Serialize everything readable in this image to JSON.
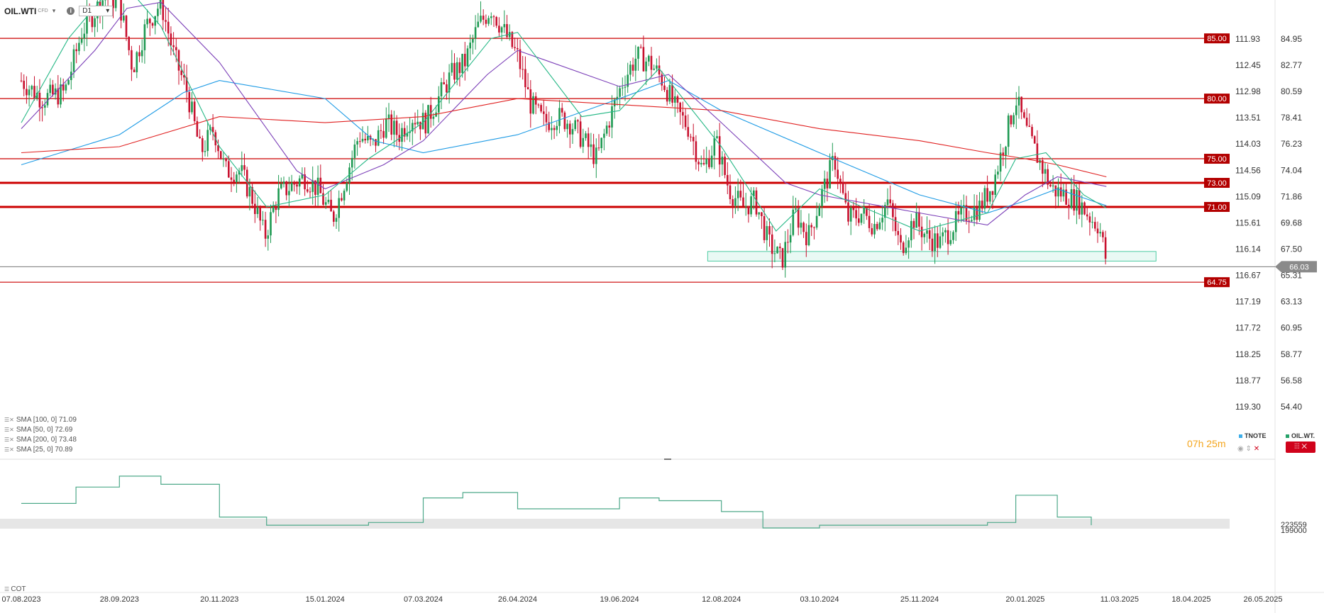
{
  "header": {
    "symbol": "OIL.WTI",
    "symbol_type": "CFD",
    "timeframe": "D1",
    "caret": "▾",
    "info_icon": "info-icon"
  },
  "chart_data": {
    "type": "line",
    "title": "",
    "series_style": "candlestick",
    "xlabel": "",
    "ylabel": "",
    "x_ticks": [
      "07.08.2023",
      "28.09.2023",
      "20.11.2023",
      "15.01.2024",
      "07.03.2024",
      "26.04.2024",
      "19.06.2024",
      "12.08.2024",
      "03.10.2024",
      "25.11.2024",
      "20.01.2025",
      "11.03.2025",
      "18.04.2025",
      "26.05.2025"
    ],
    "y_ticks": [
      "84.95",
      "82.77",
      "80.59",
      "78.41",
      "76.23",
      "74.04",
      "71.86",
      "69.68",
      "67.50",
      "65.31",
      "63.13",
      "60.95",
      "58.77",
      "56.58",
      "54.40"
    ],
    "y_ticks_secondary": [
      "111.93",
      "112.45",
      "112.98",
      "113.51",
      "114.03",
      "114.56",
      "115.09",
      "115.61",
      "116.14",
      "116.67",
      "117.19",
      "117.72",
      "118.25",
      "118.77",
      "119.30"
    ],
    "ylim": [
      54.4,
      84.95
    ],
    "current_price": "66.03",
    "levels": [
      {
        "label": "85.00",
        "value": 85.0
      },
      {
        "label": "80.00",
        "value": 80.0
      },
      {
        "label": "75.00",
        "value": 75.0
      },
      {
        "label": "73.00",
        "value": 73.0
      },
      {
        "label": "71.00",
        "value": 71.0
      },
      {
        "label": "64.75",
        "value": 64.75
      }
    ],
    "support_zone": [
      66.5,
      67.3
    ],
    "close_path": [
      {
        "date": "07.08.2023",
        "value": 81.5
      },
      {
        "date": "18.08.2023",
        "value": 80.0
      },
      {
        "date": "30.08.2023",
        "value": 80.5
      },
      {
        "date": "08.09.2023",
        "value": 85.5
      },
      {
        "date": "20.09.2023",
        "value": 88.5
      },
      {
        "date": "28.09.2023",
        "value": 88.0
      },
      {
        "date": "05.10.2023",
        "value": 82.5
      },
      {
        "date": "12.10.2023",
        "value": 86.0
      },
      {
        "date": "20.10.2023",
        "value": 88.0
      },
      {
        "date": "27.10.2023",
        "value": 83.5
      },
      {
        "date": "03.11.2023",
        "value": 80.5
      },
      {
        "date": "10.11.2023",
        "value": 75.5
      },
      {
        "date": "17.11.2023",
        "value": 77.5
      },
      {
        "date": "23.11.2023",
        "value": 74.0
      },
      {
        "date": "01.12.2023",
        "value": 74.0
      },
      {
        "date": "08.12.2023",
        "value": 71.5
      },
      {
        "date": "14.12.2023",
        "value": 68.5
      },
      {
        "date": "21.12.2023",
        "value": 72.0
      },
      {
        "date": "04.01.2024",
        "value": 73.5
      },
      {
        "date": "11.01.2024",
        "value": 72.5
      },
      {
        "date": "19.01.2024",
        "value": 70.0
      },
      {
        "date": "26.01.2024",
        "value": 73.5
      },
      {
        "date": "02.02.2024",
        "value": 77.0
      },
      {
        "date": "09.02.2024",
        "value": 76.0
      },
      {
        "date": "16.02.2024",
        "value": 78.0
      },
      {
        "date": "23.02.2024",
        "value": 77.0
      },
      {
        "date": "01.03.2024",
        "value": 78.5
      },
      {
        "date": "08.03.2024",
        "value": 78.0
      },
      {
        "date": "15.03.2024",
        "value": 80.0
      },
      {
        "date": "22.03.2024",
        "value": 82.0
      },
      {
        "date": "29.03.2024",
        "value": 83.0
      },
      {
        "date": "05.04.2024",
        "value": 86.0
      },
      {
        "date": "12.04.2024",
        "value": 87.5
      },
      {
        "date": "19.04.2024",
        "value": 85.5
      },
      {
        "date": "26.04.2024",
        "value": 83.5
      },
      {
        "date": "03.05.2024",
        "value": 79.5
      },
      {
        "date": "10.05.2024",
        "value": 78.0
      },
      {
        "date": "17.05.2024",
        "value": 78.5
      },
      {
        "date": "24.05.2024",
        "value": 78.0
      },
      {
        "date": "31.05.2024",
        "value": 76.5
      },
      {
        "date": "07.06.2024",
        "value": 75.0
      },
      {
        "date": "14.06.2024",
        "value": 78.5
      },
      {
        "date": "21.06.2024",
        "value": 81.5
      },
      {
        "date": "28.06.2024",
        "value": 83.5
      },
      {
        "date": "05.07.2024",
        "value": 83.0
      },
      {
        "date": "12.07.2024",
        "value": 81.5
      },
      {
        "date": "19.07.2024",
        "value": 79.0
      },
      {
        "date": "26.07.2024",
        "value": 77.5
      },
      {
        "date": "02.08.2024",
        "value": 74.0
      },
      {
        "date": "09.08.2024",
        "value": 76.5
      },
      {
        "date": "16.08.2024",
        "value": 72.5
      },
      {
        "date": "23.08.2024",
        "value": 71.0
      },
      {
        "date": "30.08.2024",
        "value": 71.5
      },
      {
        "date": "06.09.2024",
        "value": 68.0
      },
      {
        "date": "13.09.2024",
        "value": 66.5
      },
      {
        "date": "20.09.2024",
        "value": 70.5
      },
      {
        "date": "27.09.2024",
        "value": 68.5
      },
      {
        "date": "04.10.2024",
        "value": 72.0
      },
      {
        "date": "11.10.2024",
        "value": 75.0
      },
      {
        "date": "18.10.2024",
        "value": 70.0
      },
      {
        "date": "25.10.2024",
        "value": 70.5
      },
      {
        "date": "01.11.2024",
        "value": 69.5
      },
      {
        "date": "08.11.2024",
        "value": 71.5
      },
      {
        "date": "15.11.2024",
        "value": 67.5
      },
      {
        "date": "22.11.2024",
        "value": 70.0
      },
      {
        "date": "29.11.2024",
        "value": 68.5
      },
      {
        "date": "06.12.2024",
        "value": 68.0
      },
      {
        "date": "13.12.2024",
        "value": 69.5
      },
      {
        "date": "20.12.2024",
        "value": 70.5
      },
      {
        "date": "27.12.2024",
        "value": 71.0
      },
      {
        "date": "03.01.2025",
        "value": 73.0
      },
      {
        "date": "10.01.2025",
        "value": 77.0
      },
      {
        "date": "15.01.2025",
        "value": 80.0
      },
      {
        "date": "20.01.2025",
        "value": 77.5
      },
      {
        "date": "27.01.2025",
        "value": 75.0
      },
      {
        "date": "03.02.2025",
        "value": 72.5
      },
      {
        "date": "10.02.2025",
        "value": 72.0
      },
      {
        "date": "17.02.2025",
        "value": 71.5
      },
      {
        "date": "24.02.2025",
        "value": 70.0
      },
      {
        "date": "28.02.2025",
        "value": 69.5
      },
      {
        "date": "04.03.2025",
        "value": 66.5
      }
    ],
    "series": [
      {
        "name": "SMA [100, 0] 71.09",
        "color": "#1e9be5",
        "values": [
          {
            "date": "07.08.2023",
            "value": 74.5
          },
          {
            "date": "28.09.2023",
            "value": 77.0
          },
          {
            "date": "01.11.2023",
            "value": 80.5
          },
          {
            "date": "20.11.2023",
            "value": 81.5
          },
          {
            "date": "15.01.2024",
            "value": 80.0
          },
          {
            "date": "10.02.2024",
            "value": 76.5
          },
          {
            "date": "07.03.2024",
            "value": 75.5
          },
          {
            "date": "26.04.2024",
            "value": 77.0
          },
          {
            "date": "01.06.2024",
            "value": 79.0
          },
          {
            "date": "19.06.2024",
            "value": 80.0
          },
          {
            "date": "15.07.2024",
            "value": 81.5
          },
          {
            "date": "12.08.2024",
            "value": 79.0
          },
          {
            "date": "03.10.2024",
            "value": 75.5
          },
          {
            "date": "25.11.2024",
            "value": 72.0
          },
          {
            "date": "31.12.2024",
            "value": 70.5
          },
          {
            "date": "20.01.2025",
            "value": 71.5
          },
          {
            "date": "06.02.2025",
            "value": 72.5
          },
          {
            "date": "04.03.2025",
            "value": 71.1
          }
        ]
      },
      {
        "name": "SMA [50, 0] 72.69",
        "color": "#7b3fb8",
        "values": [
          {
            "date": "07.08.2023",
            "value": 77.5
          },
          {
            "date": "15.09.2023",
            "value": 84.0
          },
          {
            "date": "02.10.2023",
            "value": 87.5
          },
          {
            "date": "20.10.2023",
            "value": 88.0
          },
          {
            "date": "20.11.2023",
            "value": 83.0
          },
          {
            "date": "31.12.2023",
            "value": 74.0
          },
          {
            "date": "15.01.2024",
            "value": 72.5
          },
          {
            "date": "15.02.2024",
            "value": 74.5
          },
          {
            "date": "07.03.2024",
            "value": 76.5
          },
          {
            "date": "10.04.2024",
            "value": 82.0
          },
          {
            "date": "26.04.2024",
            "value": 84.0
          },
          {
            "date": "19.06.2024",
            "value": 81.0
          },
          {
            "date": "15.07.2024",
            "value": 82.0
          },
          {
            "date": "12.08.2024",
            "value": 78.0
          },
          {
            "date": "15.09.2024",
            "value": 73.0
          },
          {
            "date": "03.10.2024",
            "value": 72.0
          },
          {
            "date": "25.11.2024",
            "value": 70.5
          },
          {
            "date": "31.12.2024",
            "value": 69.5
          },
          {
            "date": "20.01.2025",
            "value": 72.0
          },
          {
            "date": "06.02.2025",
            "value": 73.5
          },
          {
            "date": "04.03.2025",
            "value": 72.7
          }
        ]
      },
      {
        "name": "SMA [200, 0] 73.48",
        "color": "#e02020",
        "values": [
          {
            "date": "07.08.2023",
            "value": 75.5
          },
          {
            "date": "28.09.2023",
            "value": 76.0
          },
          {
            "date": "20.11.2023",
            "value": 78.5
          },
          {
            "date": "15.01.2024",
            "value": 78.0
          },
          {
            "date": "07.03.2024",
            "value": 78.5
          },
          {
            "date": "26.04.2024",
            "value": 80.0
          },
          {
            "date": "19.06.2024",
            "value": 79.5
          },
          {
            "date": "12.08.2024",
            "value": 79.0
          },
          {
            "date": "03.10.2024",
            "value": 77.5
          },
          {
            "date": "25.11.2024",
            "value": 76.5
          },
          {
            "date": "31.12.2024",
            "value": 75.5
          },
          {
            "date": "20.01.2025",
            "value": 75.0
          },
          {
            "date": "06.02.2025",
            "value": 74.5
          },
          {
            "date": "04.03.2025",
            "value": 73.5
          }
        ]
      },
      {
        "name": "SMA [25, 0] 70.89",
        "color": "#26b886",
        "values": [
          {
            "date": "07.08.2023",
            "value": 78.0
          },
          {
            "date": "01.09.2023",
            "value": 85.0
          },
          {
            "date": "28.09.2023",
            "value": 90.0
          },
          {
            "date": "20.10.2023",
            "value": 86.0
          },
          {
            "date": "20.11.2023",
            "value": 76.0
          },
          {
            "date": "15.12.2023",
            "value": 71.0
          },
          {
            "date": "15.01.2024",
            "value": 72.0
          },
          {
            "date": "07.02.2024",
            "value": 75.0
          },
          {
            "date": "07.03.2024",
            "value": 78.0
          },
          {
            "date": "12.04.2024",
            "value": 85.0
          },
          {
            "date": "26.04.2024",
            "value": 85.5
          },
          {
            "date": "30.05.2024",
            "value": 78.5
          },
          {
            "date": "19.06.2024",
            "value": 79.0
          },
          {
            "date": "10.07.2024",
            "value": 82.5
          },
          {
            "date": "12.08.2024",
            "value": 76.0
          },
          {
            "date": "10.09.2024",
            "value": 69.0
          },
          {
            "date": "03.10.2024",
            "value": 72.5
          },
          {
            "date": "25.11.2024",
            "value": 69.0
          },
          {
            "date": "31.12.2024",
            "value": 70.5
          },
          {
            "date": "15.01.2025",
            "value": 75.0
          },
          {
            "date": "31.01.2025",
            "value": 75.5
          },
          {
            "date": "20.02.2025",
            "value": 72.0
          },
          {
            "date": "04.03.2025",
            "value": 70.9
          }
        ]
      }
    ],
    "lower_panel": {
      "name": "COT",
      "y_ticks": [
        "223559",
        "199000"
      ],
      "values": [
        {
          "date": "07.08.2023",
          "value": 0.45
        },
        {
          "date": "05.09.2023",
          "value": 0.75
        },
        {
          "date": "28.09.2023",
          "value": 0.95
        },
        {
          "date": "20.10.2023",
          "value": 0.8
        },
        {
          "date": "20.11.2023",
          "value": 0.2
        },
        {
          "date": "15.12.2023",
          "value": 0.05
        },
        {
          "date": "15.01.2024",
          "value": 0.05
        },
        {
          "date": "07.02.2024",
          "value": 0.1
        },
        {
          "date": "07.03.2024",
          "value": 0.55
        },
        {
          "date": "28.03.2024",
          "value": 0.65
        },
        {
          "date": "26.04.2024",
          "value": 0.35
        },
        {
          "date": "19.06.2024",
          "value": 0.55
        },
        {
          "date": "10.07.2024",
          "value": 0.5
        },
        {
          "date": "12.08.2024",
          "value": 0.3
        },
        {
          "date": "03.09.2024",
          "value": 0.0
        },
        {
          "date": "03.10.2024",
          "value": 0.05
        },
        {
          "date": "25.11.2024",
          "value": 0.05
        },
        {
          "date": "31.12.2024",
          "value": 0.1
        },
        {
          "date": "15.01.2025",
          "value": 0.6
        },
        {
          "date": "20.01.2025",
          "value": 0.6
        },
        {
          "date": "06.02.2025",
          "value": 0.2
        },
        {
          "date": "24.02.2025",
          "value": 0.05
        }
      ]
    }
  },
  "indicators": [
    {
      "label": "SMA [100,  0] 71.09"
    },
    {
      "label": "SMA [50,  0] 72.69"
    },
    {
      "label": "SMA [200,  0] 73.48"
    },
    {
      "label": "SMA [25,  0] 70.89"
    }
  ],
  "cot_label": "COT",
  "timer": {
    "hours": "07",
    "h": "h",
    "minutes": "25",
    "m": "m"
  },
  "tabs": {
    "tnote": "TNOTE",
    "oil": "OIL.WT.",
    "tnote_color": "#3daee9",
    "oil_color": "#26a269"
  },
  "colors": {
    "up": "#1e9a52",
    "down": "#c8102e",
    "level": "#cc0000",
    "zone": "#4ecca3"
  }
}
